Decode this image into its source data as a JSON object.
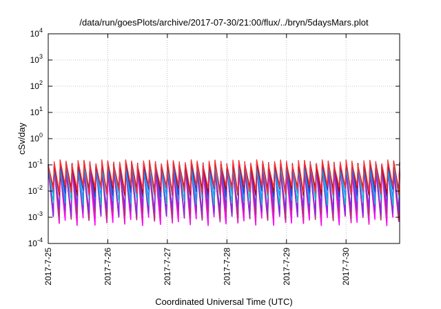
{
  "chart_data": {
    "type": "line",
    "title": "/data/run/goesPlots/archive/2017-07-30/21:00/flux/../bryn/5daysMars.plot",
    "xlabel": "Coordinated Universal Time (UTC)",
    "ylabel": "cSv/day",
    "yscale": "log",
    "ylim": [
      0.0001,
      10000
    ],
    "xlim_days": [
      0,
      5.9
    ],
    "grid": true,
    "legend": "none",
    "y_ticks": [
      {
        "value": 0.0001,
        "base": "10",
        "exp": "-4"
      },
      {
        "value": 0.001,
        "base": "10",
        "exp": "-3"
      },
      {
        "value": 0.01,
        "base": "10",
        "exp": "-2"
      },
      {
        "value": 0.1,
        "base": "10",
        "exp": "-1"
      },
      {
        "value": 1,
        "base": "10",
        "exp": "0"
      },
      {
        "value": 10,
        "base": "10",
        "exp": "1"
      },
      {
        "value": 100,
        "base": "10",
        "exp": "2"
      },
      {
        "value": 1000,
        "base": "10",
        "exp": "3"
      },
      {
        "value": 10000,
        "base": "10",
        "exp": "4"
      }
    ],
    "x_ticks": [
      {
        "day": 0,
        "label": "2017-7-25"
      },
      {
        "day": 1,
        "label": "2017-7-26"
      },
      {
        "day": 2,
        "label": "2017-7-27"
      },
      {
        "day": 3,
        "label": "2017-7-28"
      },
      {
        "day": 4,
        "label": "2017-7-29"
      },
      {
        "day": 5,
        "label": "2017-7-30"
      }
    ],
    "pattern": {
      "sawtooth_period_days": 0.1,
      "peak_value": 0.12,
      "trough_value": 0.0008
    },
    "series_colors": [
      "#ff00ff",
      "#e020c0",
      "#b03070",
      "#8a2be2",
      "#00c8c8",
      "#1e90ff",
      "#2040d0",
      "#c00000",
      "#ff3030"
    ]
  }
}
